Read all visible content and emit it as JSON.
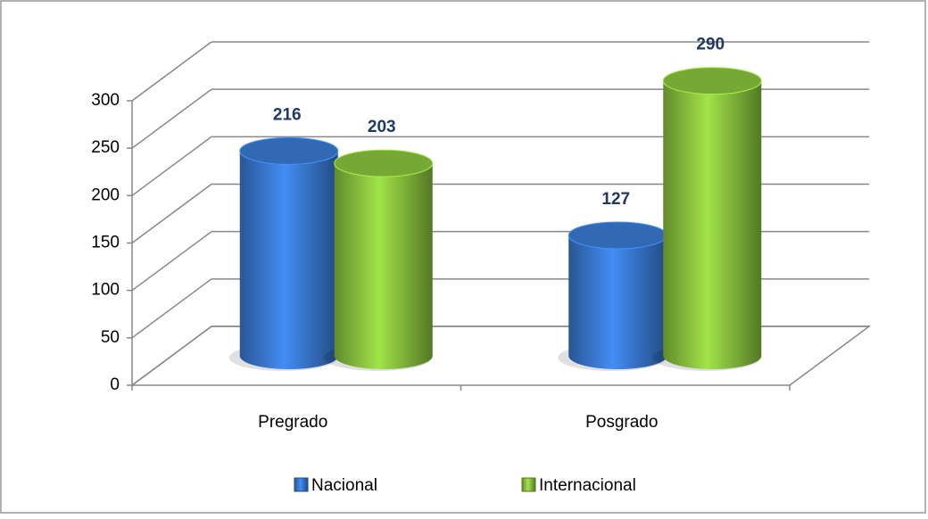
{
  "chart_data": {
    "type": "bar3d",
    "categories": [
      "Pregrado",
      "Posgrado"
    ],
    "series": [
      {
        "name": "Nacional",
        "color": "#3a7bd5",
        "values": [
          216,
          127
        ]
      },
      {
        "name": "Internacional",
        "color": "#8cc63f",
        "values": [
          203,
          290
        ]
      }
    ],
    "ylim": [
      0,
      300
    ],
    "yticks": [
      0,
      50,
      100,
      150,
      200,
      250,
      300
    ],
    "grid": true,
    "legend": "bottom"
  }
}
